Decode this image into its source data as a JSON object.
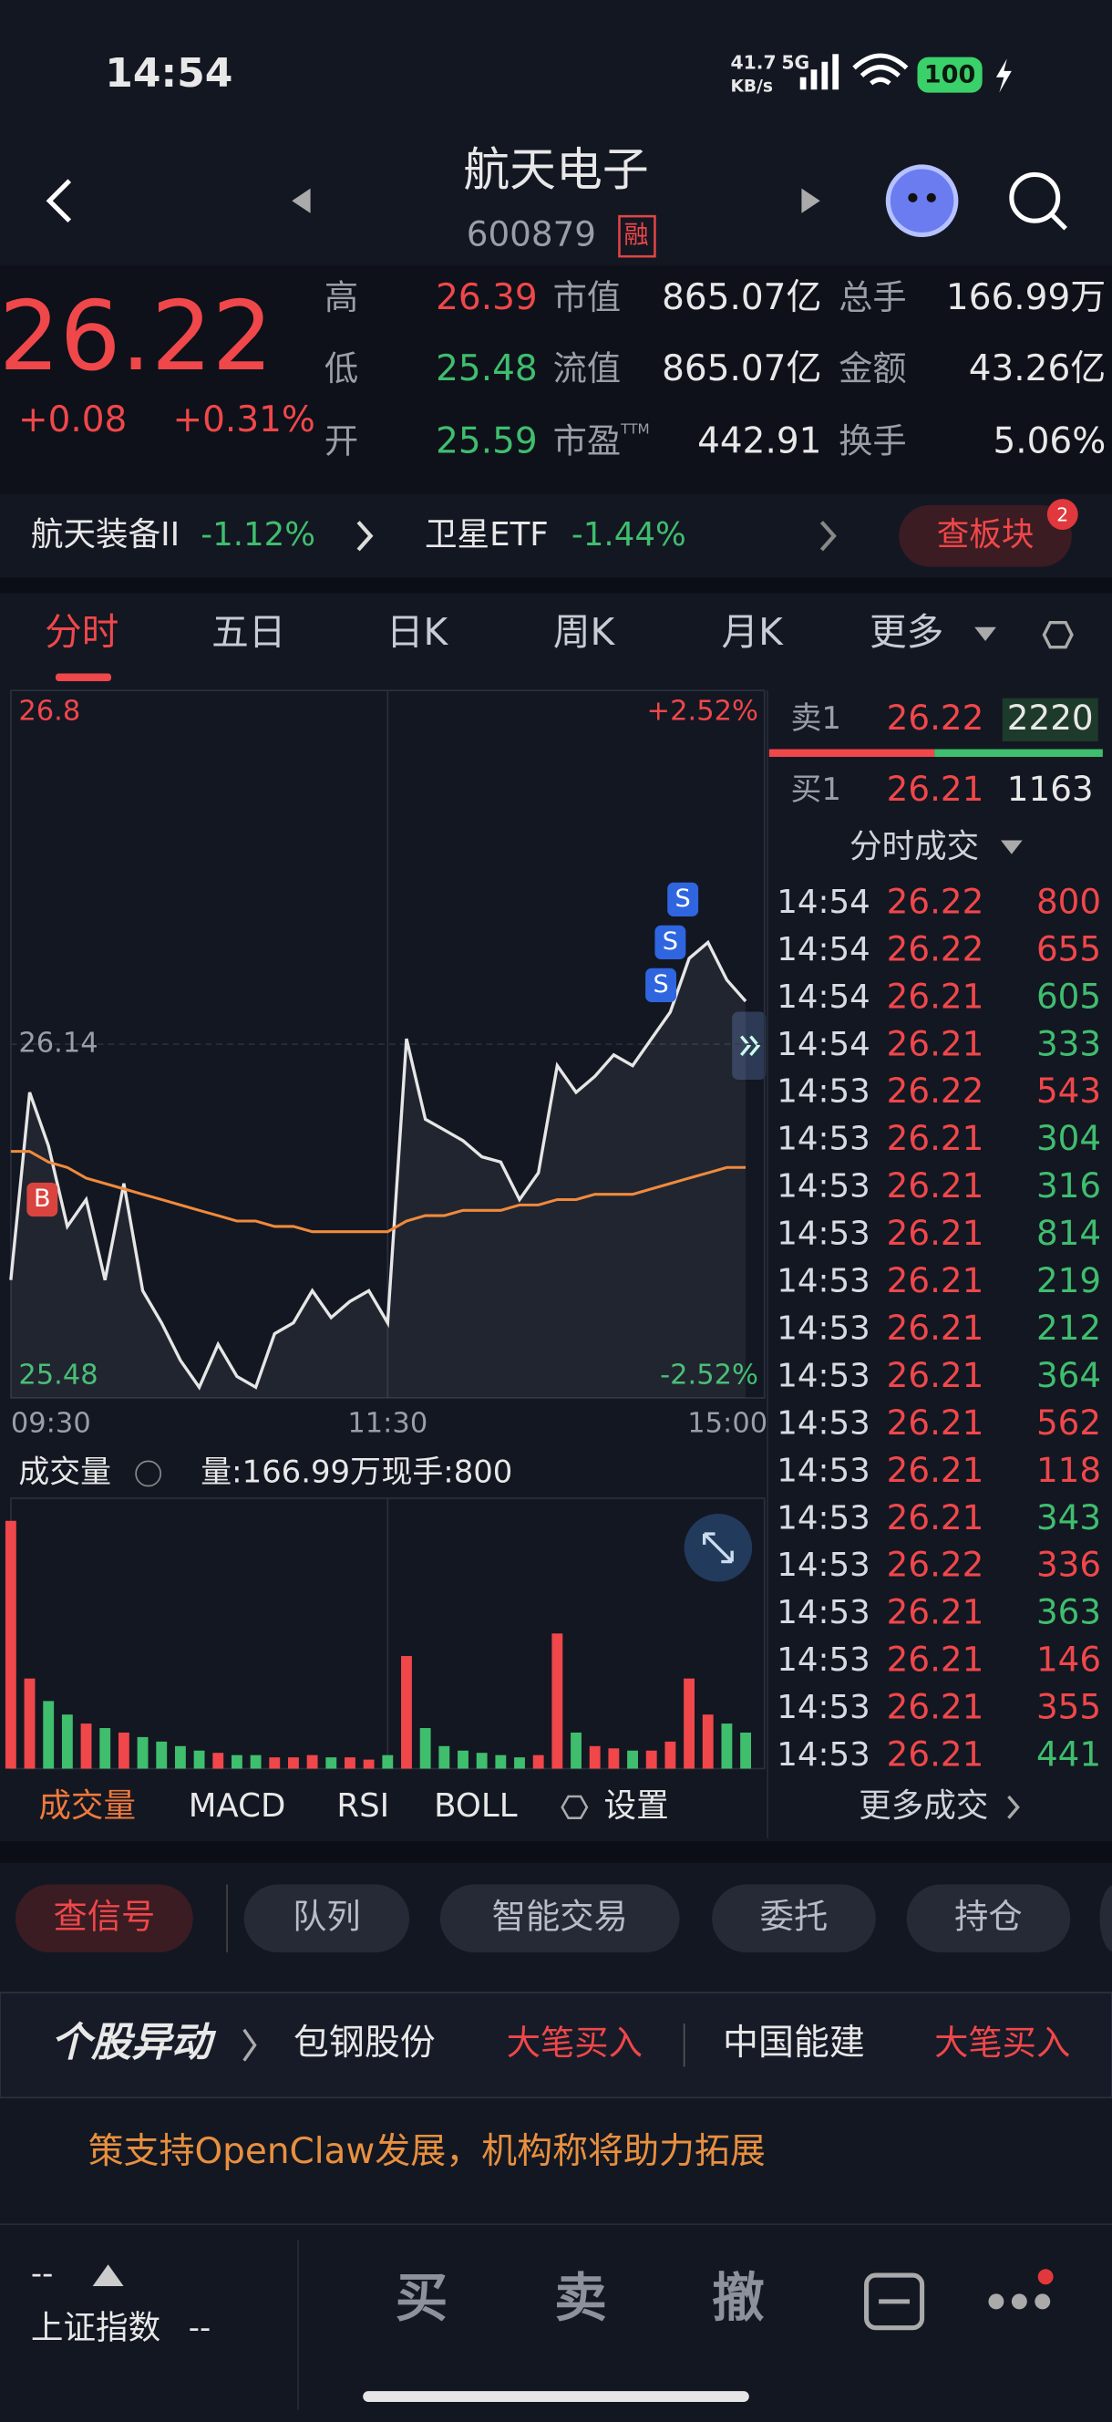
{
  "status_bar": {
    "time": "14:54",
    "net_speed": "41.7",
    "net_unit": "KB/s",
    "network": "5G",
    "battery": "100"
  },
  "header": {
    "name": "航天电子",
    "code": "600879",
    "badge": "融"
  },
  "quote": {
    "price": "26.22",
    "change": "+0.08",
    "change_pct": "+0.31%",
    "pe_sup": "TTM",
    "stats": [
      {
        "label": "高",
        "value": "26.39",
        "color": "#f0474a"
      },
      {
        "label": "市值",
        "value": "865.07亿"
      },
      {
        "label": "总手",
        "value": "166.99万"
      },
      {
        "label": "低",
        "value": "25.48",
        "color": "#3fbe6e"
      },
      {
        "label": "流值",
        "value": "865.07亿"
      },
      {
        "label": "金额",
        "value": "43.26亿"
      },
      {
        "label": "开",
        "value": "25.59",
        "color": "#3fbe6e"
      },
      {
        "label": "市盈",
        "value": "442.91"
      },
      {
        "label": "换手",
        "value": "5.06%"
      }
    ]
  },
  "sectors": [
    {
      "name": "航天装备II",
      "change": "-1.12%"
    },
    {
      "name": "卫星ETF",
      "change": "-1.44%"
    }
  ],
  "sector_button": {
    "label": "查板块",
    "badge": "2"
  },
  "tabs": [
    "分时",
    "五日",
    "日K",
    "周K",
    "月K",
    "更多"
  ],
  "chart_data": [
    {
      "type": "line",
      "x": [
        "09:30",
        "09:36",
        "09:42",
        "09:48",
        "09:54",
        "10:00",
        "10:06",
        "10:12",
        "10:18",
        "10:24",
        "10:30",
        "10:36",
        "10:42",
        "10:48",
        "10:54",
        "11:00",
        "11:06",
        "11:12",
        "11:18",
        "11:24",
        "11:30",
        "13:06",
        "13:12",
        "13:18",
        "13:24",
        "13:30",
        "13:36",
        "13:42",
        "13:48",
        "13:54",
        "14:00",
        "14:06",
        "14:12",
        "14:18",
        "14:24",
        "14:30",
        "14:36",
        "14:42",
        "14:48",
        "14:54"
      ],
      "series": [
        {
          "color": "#e6e6e6",
          "values": [
            25.7,
            26.05,
            25.95,
            25.8,
            25.85,
            25.7,
            25.88,
            25.68,
            25.62,
            25.55,
            25.5,
            25.58,
            25.52,
            25.5,
            25.6,
            25.62,
            25.68,
            25.63,
            25.66,
            25.68,
            25.62,
            26.15,
            26.0,
            25.98,
            25.96,
            25.93,
            25.92,
            25.85,
            25.9,
            26.1,
            26.05,
            26.08,
            26.12,
            26.1,
            26.15,
            26.2,
            26.3,
            26.33,
            26.26,
            26.22
          ]
        },
        {
          "color": "#f08a3c",
          "values": [
            25.94,
            25.94,
            25.92,
            25.91,
            25.89,
            25.88,
            25.87,
            25.86,
            25.85,
            25.84,
            25.83,
            25.82,
            25.81,
            25.81,
            25.8,
            25.8,
            25.79,
            25.79,
            25.79,
            25.79,
            25.79,
            25.81,
            25.82,
            25.82,
            25.83,
            25.83,
            25.83,
            25.84,
            25.84,
            25.85,
            25.85,
            25.86,
            25.86,
            25.86,
            25.87,
            25.88,
            25.89,
            25.9,
            25.91,
            25.91
          ]
        }
      ],
      "xlim": [
        "09:30",
        "15:00"
      ],
      "xticks": [
        "09:30",
        "11:30",
        "15:00"
      ],
      "ylim": [
        25.48,
        26.8
      ],
      "yticks": [
        25.48,
        26.14,
        26.8
      ],
      "y2lim": [
        -2.52,
        2.52
      ],
      "y2ticks": [
        {
          "value": -2.52,
          "label": "-2.52%"
        },
        {
          "value": 2.52,
          "label": "+2.52%"
        }
      ],
      "markers": [
        {
          "label": "B",
          "x": "09:40",
          "value": 25.85
        },
        {
          "label": "S",
          "x": "14:27",
          "value": 26.25
        },
        {
          "label": "S",
          "x": "14:30",
          "value": 26.33
        },
        {
          "label": "S",
          "x": "14:34",
          "value": 26.41
        }
      ]
    },
    {
      "type": "bar",
      "title": "成交量",
      "volume_total": "量:166.99万",
      "current_hand": "现手:800",
      "values": [
        55000,
        20000,
        15000,
        12000,
        10000,
        9000,
        8000,
        7000,
        6000,
        5000,
        4000,
        3500,
        3000,
        3000,
        2500,
        2500,
        3000,
        2500,
        2500,
        2000,
        3000,
        25000,
        9000,
        5000,
        4000,
        3500,
        3000,
        2500,
        3000,
        30000,
        8000,
        5000,
        4500,
        4000,
        4000,
        6000,
        20000,
        12000,
        10000,
        8000
      ],
      "ylim": [
        0,
        60000
      ]
    }
  ],
  "order_book": {
    "ask": {
      "label": "卖1",
      "price": "26.22",
      "volume": "2220"
    },
    "bid": {
      "label": "买1",
      "price": "26.21",
      "volume": "1163"
    }
  },
  "trades_title": "分时成交",
  "trades": [
    {
      "time": "14:54",
      "price": "26.22",
      "volume": "800",
      "color": "#f0474a"
    },
    {
      "time": "14:54",
      "price": "26.22",
      "volume": "655",
      "color": "#f0474a"
    },
    {
      "time": "14:54",
      "price": "26.21",
      "volume": "605",
      "color": "#3fbe6e"
    },
    {
      "time": "14:54",
      "price": "26.21",
      "volume": "333",
      "color": "#3fbe6e"
    },
    {
      "time": "14:53",
      "price": "26.22",
      "volume": "543",
      "color": "#f0474a"
    },
    {
      "time": "14:53",
      "price": "26.21",
      "volume": "304",
      "color": "#3fbe6e"
    },
    {
      "time": "14:53",
      "price": "26.21",
      "volume": "316",
      "color": "#3fbe6e"
    },
    {
      "time": "14:53",
      "price": "26.21",
      "volume": "814",
      "color": "#3fbe6e"
    },
    {
      "time": "14:53",
      "price": "26.21",
      "volume": "219",
      "color": "#3fbe6e"
    },
    {
      "time": "14:53",
      "price": "26.21",
      "volume": "212",
      "color": "#3fbe6e"
    },
    {
      "time": "14:53",
      "price": "26.21",
      "volume": "364",
      "color": "#3fbe6e"
    },
    {
      "time": "14:53",
      "price": "26.21",
      "volume": "562",
      "color": "#f0474a"
    },
    {
      "time": "14:53",
      "price": "26.21",
      "volume": "118",
      "color": "#f0474a"
    },
    {
      "time": "14:53",
      "price": "26.21",
      "volume": "343",
      "color": "#3fbe6e"
    },
    {
      "time": "14:53",
      "price": "26.22",
      "volume": "336",
      "color": "#f0474a"
    },
    {
      "time": "14:53",
      "price": "26.21",
      "volume": "363",
      "color": "#3fbe6e"
    },
    {
      "time": "14:53",
      "price": "26.21",
      "volume": "146",
      "color": "#f0474a"
    },
    {
      "time": "14:53",
      "price": "26.21",
      "volume": "355",
      "color": "#f0474a"
    },
    {
      "time": "14:53",
      "price": "26.21",
      "volume": "441",
      "color": "#3fbe6e"
    }
  ],
  "indicator_tabs": [
    "成交量",
    "MACD",
    "RSI",
    "BOLL",
    "设置"
  ],
  "more_trades": "更多成交",
  "actions": [
    "查信号",
    "队列",
    "智能交易",
    "委托",
    "持仓"
  ],
  "news": {
    "label": "个股异动",
    "items": [
      {
        "stock": "包钢股份",
        "event": "大笔买入"
      },
      {
        "stock": "中国能建",
        "event": "大笔买入"
      }
    ]
  },
  "ticker": "策支持OpenClaw发展，机构称将助力拓展",
  "bottom_bar": {
    "index_value": "--",
    "index_name": "上证指数",
    "index_change": "--",
    "buttons": [
      "买",
      "卖",
      "撤"
    ]
  }
}
